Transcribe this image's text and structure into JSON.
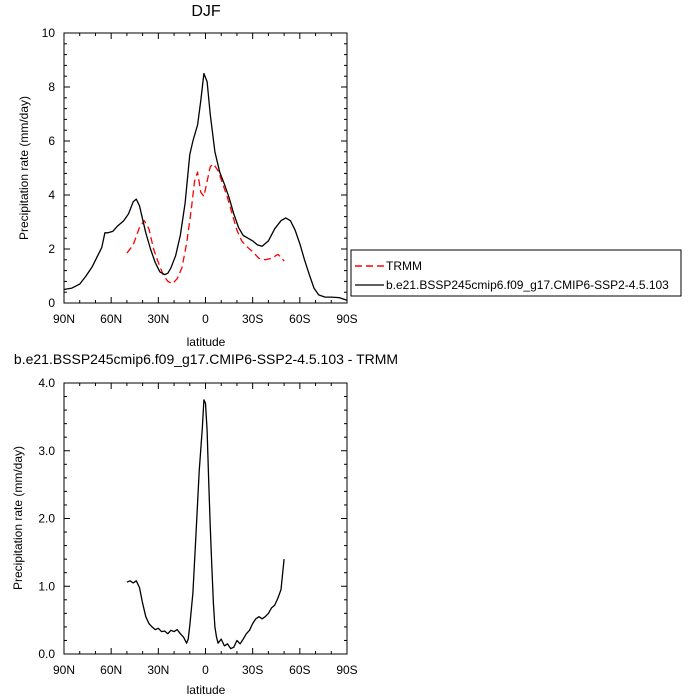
{
  "chart_data": [
    {
      "type": "line",
      "title": "DJF",
      "xlabel": "latitude",
      "ylabel": "Precipitation rate (mm/day)",
      "xlim": [
        90,
        -90
      ],
      "ylim": [
        0,
        10
      ],
      "x_ticks": [
        {
          "value": 90,
          "label": "90N"
        },
        {
          "value": 60,
          "label": "60N"
        },
        {
          "value": 30,
          "label": "30N"
        },
        {
          "value": 0,
          "label": "0"
        },
        {
          "value": -30,
          "label": "30S"
        },
        {
          "value": -60,
          "label": "60S"
        },
        {
          "value": -90,
          "label": "90S"
        }
      ],
      "y_ticks": [
        {
          "value": 0,
          "label": "0"
        },
        {
          "value": 2,
          "label": "2"
        },
        {
          "value": 4,
          "label": "4"
        },
        {
          "value": 6,
          "label": "6"
        },
        {
          "value": 8,
          "label": "8"
        },
        {
          "value": 10,
          "label": "10"
        }
      ],
      "legend": {
        "placement": "right"
      },
      "series": [
        {
          "name": "TRMM",
          "color": "#ff0000",
          "dash": "dashed",
          "points": [
            [
              50,
              1.85
            ],
            [
              46,
              2.15
            ],
            [
              42,
              2.8
            ],
            [
              39,
              3.05
            ],
            [
              36,
              2.75
            ],
            [
              33,
              2.0
            ],
            [
              30,
              1.5
            ],
            [
              27,
              1.05
            ],
            [
              24,
              0.8
            ],
            [
              21,
              0.72
            ],
            [
              18,
              0.9
            ],
            [
              15,
              1.3
            ],
            [
              12,
              2.2
            ],
            [
              9,
              3.5
            ],
            [
              7,
              4.5
            ],
            [
              5,
              4.85
            ],
            [
              3,
              4.1
            ],
            [
              1,
              3.95
            ],
            [
              -1,
              4.5
            ],
            [
              -3,
              5.05
            ],
            [
              -5,
              5.15
            ],
            [
              -8,
              4.9
            ],
            [
              -11,
              4.4
            ],
            [
              -14,
              3.9
            ],
            [
              -17,
              3.3
            ],
            [
              -20,
              2.7
            ],
            [
              -23,
              2.3
            ],
            [
              -26,
              2.1
            ],
            [
              -30,
              1.9
            ],
            [
              -34,
              1.65
            ],
            [
              -38,
              1.6
            ],
            [
              -42,
              1.65
            ],
            [
              -46,
              1.8
            ],
            [
              -48,
              1.7
            ],
            [
              -50,
              1.55
            ]
          ]
        },
        {
          "name": "b.e21.BSSP245cmip6.f09_g17.CMIP6-SSP2-4.5.103",
          "color": "#000000",
          "dash": "solid",
          "points": [
            [
              90,
              0.5
            ],
            [
              85,
              0.55
            ],
            [
              80,
              0.7
            ],
            [
              76,
              1.0
            ],
            [
              72,
              1.35
            ],
            [
              69,
              1.7
            ],
            [
              66,
              2.05
            ],
            [
              64,
              2.6
            ],
            [
              62,
              2.6
            ],
            [
              59,
              2.65
            ],
            [
              56,
              2.85
            ],
            [
              52,
              3.05
            ],
            [
              49,
              3.3
            ],
            [
              46,
              3.75
            ],
            [
              44,
              3.85
            ],
            [
              42,
              3.6
            ],
            [
              40,
              3.1
            ],
            [
              38,
              2.6
            ],
            [
              35,
              2.0
            ],
            [
              32,
              1.5
            ],
            [
              29,
              1.15
            ],
            [
              26,
              1.05
            ],
            [
              24,
              1.1
            ],
            [
              22,
              1.3
            ],
            [
              19,
              1.75
            ],
            [
              16,
              2.5
            ],
            [
              13,
              3.7
            ],
            [
              10,
              5.5
            ],
            [
              8,
              6.0
            ],
            [
              5,
              6.6
            ],
            [
              3,
              7.5
            ],
            [
              1,
              8.5
            ],
            [
              -1,
              8.2
            ],
            [
              -3,
              7.0
            ],
            [
              -6,
              5.6
            ],
            [
              -9,
              4.85
            ],
            [
              -12,
              4.4
            ],
            [
              -15,
              3.9
            ],
            [
              -18,
              3.3
            ],
            [
              -21,
              2.8
            ],
            [
              -24,
              2.5
            ],
            [
              -27,
              2.4
            ],
            [
              -30,
              2.3
            ],
            [
              -33,
              2.15
            ],
            [
              -36,
              2.1
            ],
            [
              -40,
              2.3
            ],
            [
              -44,
              2.75
            ],
            [
              -48,
              3.05
            ],
            [
              -51,
              3.15
            ],
            [
              -54,
              3.05
            ],
            [
              -57,
              2.7
            ],
            [
              -60,
              2.2
            ],
            [
              -63,
              1.6
            ],
            [
              -66,
              1.05
            ],
            [
              -69,
              0.55
            ],
            [
              -72,
              0.3
            ],
            [
              -76,
              0.22
            ],
            [
              -80,
              0.22
            ],
            [
              -85,
              0.2
            ],
            [
              -90,
              0.1
            ]
          ]
        }
      ]
    },
    {
      "type": "line",
      "title": "b.e21.BSSP245cmip6.f09_g17.CMIP6-SSP2-4.5.103 - TRMM",
      "xlabel": "latitude",
      "ylabel": "Precipitation rate (mm/day)",
      "xlim": [
        90,
        -90
      ],
      "ylim": [
        0,
        4
      ],
      "x_ticks": [
        {
          "value": 90,
          "label": "90N"
        },
        {
          "value": 60,
          "label": "60N"
        },
        {
          "value": 30,
          "label": "30N"
        },
        {
          "value": 0,
          "label": "0"
        },
        {
          "value": -30,
          "label": "30S"
        },
        {
          "value": -60,
          "label": "60S"
        },
        {
          "value": -90,
          "label": "90S"
        }
      ],
      "y_ticks": [
        {
          "value": 0,
          "label": "0.0"
        },
        {
          "value": 1,
          "label": "1.0"
        },
        {
          "value": 2,
          "label": "2.0"
        },
        {
          "value": 3,
          "label": "3.0"
        },
        {
          "value": 4,
          "label": "4.0"
        }
      ],
      "series": [
        {
          "color": "#000000",
          "dash": "solid",
          "points": [
            [
              50,
              1.06
            ],
            [
              48,
              1.08
            ],
            [
              46,
              1.05
            ],
            [
              44,
              1.08
            ],
            [
              42,
              0.98
            ],
            [
              40,
              0.75
            ],
            [
              38,
              0.55
            ],
            [
              36,
              0.45
            ],
            [
              34,
              0.4
            ],
            [
              32,
              0.36
            ],
            [
              30,
              0.38
            ],
            [
              28,
              0.33
            ],
            [
              26,
              0.34
            ],
            [
              24,
              0.3
            ],
            [
              22,
              0.35
            ],
            [
              20,
              0.33
            ],
            [
              18,
              0.36
            ],
            [
              16,
              0.3
            ],
            [
              14,
              0.25
            ],
            [
              12,
              0.16
            ],
            [
              11,
              0.22
            ],
            [
              10,
              0.42
            ],
            [
              8,
              0.9
            ],
            [
              6,
              1.8
            ],
            [
              4,
              2.7
            ],
            [
              2,
              3.35
            ],
            [
              1,
              3.75
            ],
            [
              0,
              3.7
            ],
            [
              -1,
              3.3
            ],
            [
              -2,
              2.6
            ],
            [
              -3,
              1.9
            ],
            [
              -4,
              1.3
            ],
            [
              -5,
              0.75
            ],
            [
              -6,
              0.4
            ],
            [
              -7,
              0.25
            ],
            [
              -8,
              0.16
            ],
            [
              -10,
              0.22
            ],
            [
              -12,
              0.12
            ],
            [
              -14,
              0.15
            ],
            [
              -16,
              0.08
            ],
            [
              -18,
              0.1
            ],
            [
              -20,
              0.2
            ],
            [
              -22,
              0.15
            ],
            [
              -24,
              0.22
            ],
            [
              -26,
              0.3
            ],
            [
              -28,
              0.35
            ],
            [
              -30,
              0.45
            ],
            [
              -32,
              0.52
            ],
            [
              -34,
              0.55
            ],
            [
              -36,
              0.52
            ],
            [
              -38,
              0.55
            ],
            [
              -40,
              0.6
            ],
            [
              -42,
              0.68
            ],
            [
              -44,
              0.72
            ],
            [
              -46,
              0.82
            ],
            [
              -48,
              0.95
            ],
            [
              -50,
              1.4
            ]
          ]
        }
      ]
    }
  ]
}
